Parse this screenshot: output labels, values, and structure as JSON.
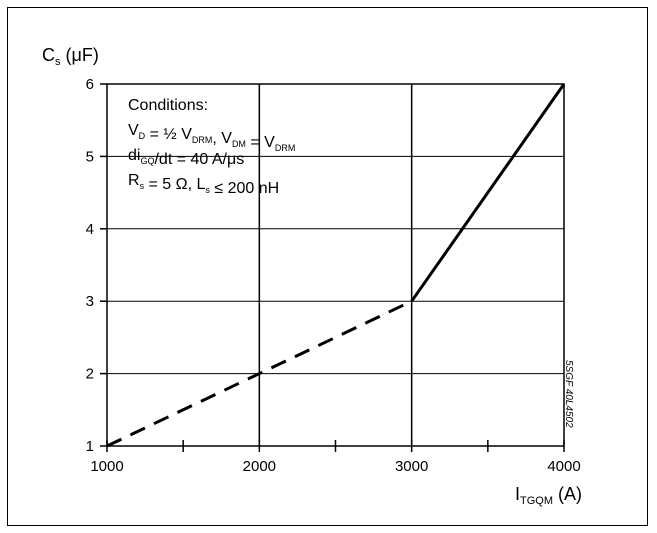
{
  "chart_data": {
    "type": "line",
    "ylabel": "C",
    "ylabel_sub": "s",
    "ylabel_unit": " (μF)",
    "xlabel": "I",
    "xlabel_sub": "TGQM",
    "xlabel_unit": " (A)",
    "xlim": [
      1000,
      4000
    ],
    "ylim": [
      1,
      6
    ],
    "x_ticks": [
      1000,
      1500,
      2000,
      2500,
      3000,
      3500,
      4000
    ],
    "x_tick_labels": [
      "1000",
      "",
      "2000",
      "",
      "3000",
      "",
      "4000"
    ],
    "y_ticks": [
      1,
      2,
      3,
      4,
      5,
      6
    ],
    "y_tick_labels": [
      "1",
      "2",
      "3",
      "4",
      "5",
      "6"
    ],
    "grid": true,
    "series": [
      {
        "style": "dashed",
        "x": [
          1000,
          3000
        ],
        "y": [
          1,
          3
        ]
      },
      {
        "style": "solid",
        "x": [
          3000,
          4000
        ],
        "y": [
          3,
          6
        ]
      }
    ],
    "conditions": {
      "title": "Conditions:",
      "line1": [
        {
          "t": "V"
        },
        {
          "t": "D",
          "sub": true
        },
        {
          "t": " = ½ V"
        },
        {
          "t": "DRM",
          "sub": true
        },
        {
          "t": ", V"
        },
        {
          "t": "DM",
          "sub": true
        },
        {
          "t": " = V"
        },
        {
          "t": "DRM",
          "sub": true
        }
      ],
      "line2": [
        {
          "t": "di"
        },
        {
          "t": "GQ",
          "sub": true
        },
        {
          "t": "/dt = 40 A/μs"
        }
      ],
      "line3": [
        {
          "t": "R"
        },
        {
          "t": "s",
          "sub": true
        },
        {
          "t": " = 5 Ω, L"
        },
        {
          "t": "s",
          "sub": true
        },
        {
          "t": " ≤ 200 nH"
        }
      ]
    },
    "reference_code": "5SGF 40L4502",
    "line_color": "#000000"
  }
}
